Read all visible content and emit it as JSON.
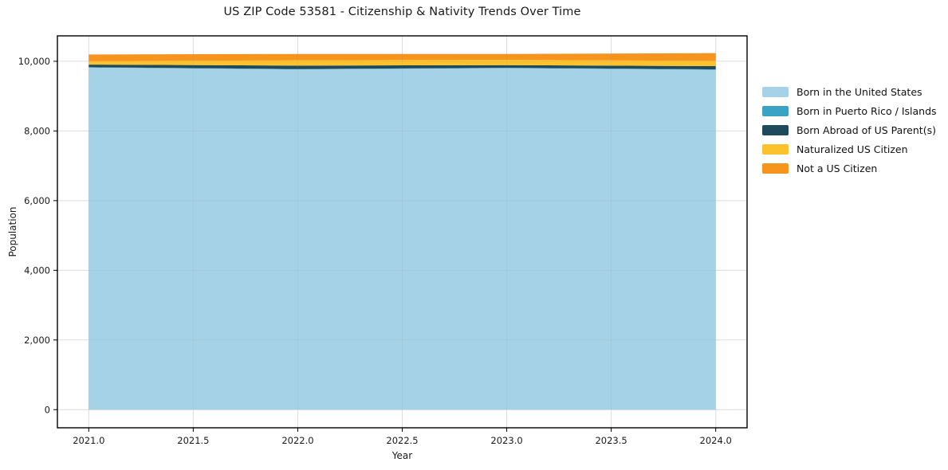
{
  "title": "US ZIP Code 53581 - Citizenship & Nativity Trends Over Time",
  "chart_data": {
    "type": "area",
    "stacked": true,
    "title": "US ZIP Code 53581 - Citizenship & Nativity Trends Over Time",
    "xlabel": "Year",
    "ylabel": "Population",
    "x": [
      2021,
      2022,
      2023,
      2024
    ],
    "series": [
      {
        "name": "Born in the United States",
        "color": "#a6d2e7",
        "values": [
          9820,
          9768,
          9803,
          9758
        ]
      },
      {
        "name": "Born in Puerto Rico / Islands",
        "color": "#3aa2c2",
        "values": [
          10,
          10,
          10,
          10
        ]
      },
      {
        "name": "Born Abroad of US Parent(s)",
        "color": "#1f4a5c",
        "values": [
          75,
          97,
          78,
          92
        ]
      },
      {
        "name": "Naturalized US Citizen",
        "color": "#fcc22d",
        "values": [
          100,
          153,
          151,
          152
        ]
      },
      {
        "name": "Not a US Citizen",
        "color": "#f7941e",
        "values": [
          190,
          183,
          169,
          222
        ]
      }
    ],
    "xlim": [
      2020.85,
      2024.15
    ],
    "ylim": [
      -520,
      10730
    ],
    "x_ticks": {
      "values": [
        2021.0,
        2021.5,
        2022.0,
        2022.5,
        2023.0,
        2023.5,
        2024.0
      ],
      "labels": [
        "2021.0",
        "2021.5",
        "2022.0",
        "2022.5",
        "2023.0",
        "2023.5",
        "2024.0"
      ]
    },
    "y_ticks": {
      "values": [
        0,
        2000,
        4000,
        6000,
        8000,
        10000
      ],
      "labels": [
        "0",
        "2,000",
        "4,000",
        "6,000",
        "8,000",
        "10,000"
      ]
    },
    "grid": true,
    "legend_position": "right",
    "axis_color": "#000000",
    "grid_color": "#e8e8e8",
    "tick_label_color": "#1a1a1a"
  }
}
